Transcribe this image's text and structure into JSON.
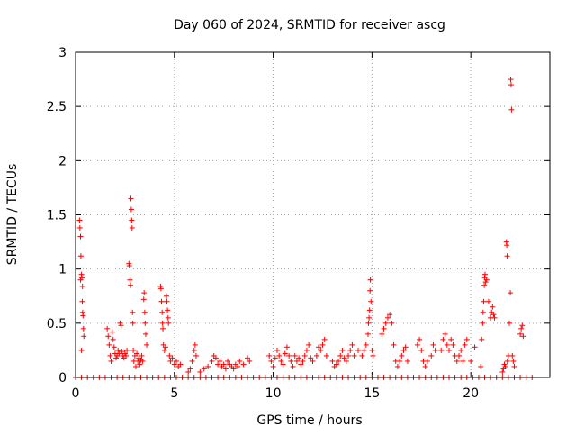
{
  "chart_data": {
    "type": "scatter",
    "title": "Day 060 of 2024, SRMTID for receiver ascg",
    "xlabel": "GPS time / hours",
    "ylabel": "SRMTID / TECUs",
    "xlim": [
      0,
      24
    ],
    "ylim": [
      0,
      3
    ],
    "x_ticks": [
      0,
      5,
      10,
      15,
      20
    ],
    "x_tick_labels": [
      "0",
      "5",
      "10",
      "15",
      "20"
    ],
    "y_ticks": [
      0,
      0.5,
      1,
      1.5,
      2,
      2.5,
      3
    ],
    "y_tick_labels": [
      "0",
      "0.5",
      "1",
      "1.5",
      "2",
      "2.5",
      "3"
    ],
    "grid": true,
    "marker": "+",
    "series": [
      {
        "name": "SRMTID",
        "color": "#ff0000",
        "points": [
          [
            0.2,
            1.45
          ],
          [
            0.22,
            1.38
          ],
          [
            0.25,
            1.3
          ],
          [
            0.27,
            1.12
          ],
          [
            0.3,
            0.95
          ],
          [
            0.32,
            0.92
          ],
          [
            0.34,
            0.7
          ],
          [
            0.36,
            0.6
          ],
          [
            0.38,
            0.57
          ],
          [
            0.4,
            0.45
          ],
          [
            0.42,
            0.38
          ],
          [
            0.3,
            0.25
          ],
          [
            0.25,
            0.9
          ],
          [
            0.35,
            0.84
          ],
          [
            1.6,
            0.45
          ],
          [
            1.65,
            0.38
          ],
          [
            1.7,
            0.3
          ],
          [
            1.75,
            0.2
          ],
          [
            1.8,
            0.15
          ],
          [
            1.85,
            0.42
          ],
          [
            1.9,
            0.35
          ],
          [
            1.95,
            0.28
          ],
          [
            2.0,
            0.22
          ],
          [
            2.05,
            0.18
          ],
          [
            2.1,
            0.2
          ],
          [
            2.15,
            0.25
          ],
          [
            2.2,
            0.22
          ],
          [
            2.25,
            0.5
          ],
          [
            2.3,
            0.48
          ],
          [
            2.35,
            0.24
          ],
          [
            2.4,
            0.2
          ],
          [
            2.45,
            0.18
          ],
          [
            2.5,
            0.22
          ],
          [
            2.55,
            0.2
          ],
          [
            2.6,
            0.25
          ],
          [
            2.7,
            1.05
          ],
          [
            2.72,
            1.03
          ],
          [
            2.75,
            0.9
          ],
          [
            2.78,
            0.85
          ],
          [
            2.8,
            1.65
          ],
          [
            2.82,
            1.55
          ],
          [
            2.84,
            1.45
          ],
          [
            2.86,
            1.38
          ],
          [
            2.88,
            0.6
          ],
          [
            2.9,
            0.5
          ],
          [
            2.92,
            0.25
          ],
          [
            2.95,
            0.15
          ],
          [
            3.0,
            0.2
          ],
          [
            3.05,
            0.1
          ],
          [
            3.1,
            0.22
          ],
          [
            3.15,
            0.15
          ],
          [
            3.2,
            0.18
          ],
          [
            3.25,
            0.12
          ],
          [
            3.3,
            0.16
          ],
          [
            3.35,
            0.2
          ],
          [
            3.4,
            0.15
          ],
          [
            3.45,
            0.72
          ],
          [
            3.47,
            0.78
          ],
          [
            3.5,
            0.6
          ],
          [
            3.52,
            0.5
          ],
          [
            3.55,
            0.4
          ],
          [
            3.6,
            0.3
          ],
          [
            4.3,
            0.84
          ],
          [
            4.32,
            0.82
          ],
          [
            4.35,
            0.7
          ],
          [
            4.38,
            0.6
          ],
          [
            4.4,
            0.5
          ],
          [
            4.42,
            0.45
          ],
          [
            4.45,
            0.3
          ],
          [
            4.5,
            0.25
          ],
          [
            4.55,
            0.28
          ],
          [
            4.6,
            0.75
          ],
          [
            4.62,
            0.7
          ],
          [
            4.65,
            0.62
          ],
          [
            4.68,
            0.55
          ],
          [
            4.7,
            0.5
          ],
          [
            4.75,
            0.2
          ],
          [
            4.8,
            0.15
          ],
          [
            4.9,
            0.18
          ],
          [
            5.0,
            0.12
          ],
          [
            5.1,
            0.15
          ],
          [
            5.2,
            0.1
          ],
          [
            5.3,
            0.12
          ],
          [
            5.7,
            0.05
          ],
          [
            5.8,
            0.08
          ],
          [
            5.9,
            0.15
          ],
          [
            6.0,
            0.25
          ],
          [
            6.05,
            0.3
          ],
          [
            6.1,
            0.2
          ],
          [
            6.3,
            0.05
          ],
          [
            6.5,
            0.08
          ],
          [
            6.7,
            0.1
          ],
          [
            6.9,
            0.15
          ],
          [
            7.0,
            0.2
          ],
          [
            7.1,
            0.18
          ],
          [
            7.2,
            0.12
          ],
          [
            7.3,
            0.15
          ],
          [
            7.4,
            0.1
          ],
          [
            7.5,
            0.12
          ],
          [
            7.6,
            0.08
          ],
          [
            7.7,
            0.15
          ],
          [
            7.8,
            0.12
          ],
          [
            7.9,
            0.1
          ],
          [
            8.0,
            0.08
          ],
          [
            8.1,
            0.12
          ],
          [
            8.2,
            0.1
          ],
          [
            8.3,
            0.15
          ],
          [
            8.5,
            0.12
          ],
          [
            8.7,
            0.18
          ],
          [
            8.8,
            0.15
          ],
          [
            9.8,
            0.2
          ],
          [
            9.9,
            0.15
          ],
          [
            10.0,
            0.1
          ],
          [
            10.1,
            0.18
          ],
          [
            10.2,
            0.25
          ],
          [
            10.3,
            0.2
          ],
          [
            10.4,
            0.15
          ],
          [
            10.5,
            0.12
          ],
          [
            10.6,
            0.22
          ],
          [
            10.7,
            0.28
          ],
          [
            10.8,
            0.2
          ],
          [
            10.9,
            0.15
          ],
          [
            11.0,
            0.1
          ],
          [
            11.1,
            0.2
          ],
          [
            11.2,
            0.15
          ],
          [
            11.3,
            0.18
          ],
          [
            11.4,
            0.12
          ],
          [
            11.5,
            0.15
          ],
          [
            11.6,
            0.2
          ],
          [
            11.7,
            0.25
          ],
          [
            11.8,
            0.3
          ],
          [
            11.9,
            0.18
          ],
          [
            12.0,
            0.15
          ],
          [
            12.2,
            0.2
          ],
          [
            12.3,
            0.28
          ],
          [
            12.4,
            0.25
          ],
          [
            12.5,
            0.3
          ],
          [
            12.6,
            0.35
          ],
          [
            12.7,
            0.2
          ],
          [
            13.0,
            0.15
          ],
          [
            13.1,
            0.1
          ],
          [
            13.2,
            0.12
          ],
          [
            13.3,
            0.15
          ],
          [
            13.4,
            0.2
          ],
          [
            13.5,
            0.25
          ],
          [
            13.6,
            0.18
          ],
          [
            13.7,
            0.15
          ],
          [
            13.8,
            0.2
          ],
          [
            13.9,
            0.25
          ],
          [
            14.0,
            0.3
          ],
          [
            14.1,
            0.2
          ],
          [
            14.3,
            0.25
          ],
          [
            14.5,
            0.2
          ],
          [
            14.6,
            0.25
          ],
          [
            14.7,
            0.3
          ],
          [
            14.8,
            0.4
          ],
          [
            14.82,
            0.5
          ],
          [
            14.85,
            0.55
          ],
          [
            14.88,
            0.62
          ],
          [
            14.9,
            0.8
          ],
          [
            14.92,
            0.9
          ],
          [
            14.95,
            0.7
          ],
          [
            15.0,
            0.25
          ],
          [
            15.05,
            0.2
          ],
          [
            15.5,
            0.4
          ],
          [
            15.6,
            0.45
          ],
          [
            15.7,
            0.5
          ],
          [
            15.8,
            0.55
          ],
          [
            15.9,
            0.58
          ],
          [
            16.0,
            0.5
          ],
          [
            16.1,
            0.3
          ],
          [
            16.2,
            0.15
          ],
          [
            16.3,
            0.1
          ],
          [
            16.4,
            0.15
          ],
          [
            16.5,
            0.2
          ],
          [
            16.6,
            0.25
          ],
          [
            16.7,
            0.28
          ],
          [
            16.8,
            0.15
          ],
          [
            17.3,
            0.3
          ],
          [
            17.4,
            0.35
          ],
          [
            17.5,
            0.25
          ],
          [
            17.6,
            0.15
          ],
          [
            17.7,
            0.1
          ],
          [
            17.8,
            0.15
          ],
          [
            18.0,
            0.2
          ],
          [
            18.1,
            0.3
          ],
          [
            18.2,
            0.25
          ],
          [
            18.5,
            0.25
          ],
          [
            18.6,
            0.35
          ],
          [
            18.7,
            0.4
          ],
          [
            18.8,
            0.3
          ],
          [
            18.9,
            0.25
          ],
          [
            19.0,
            0.35
          ],
          [
            19.1,
            0.3
          ],
          [
            19.2,
            0.2
          ],
          [
            19.3,
            0.15
          ],
          [
            19.4,
            0.2
          ],
          [
            19.5,
            0.25
          ],
          [
            19.6,
            0.15
          ],
          [
            19.7,
            0.3
          ],
          [
            19.8,
            0.35
          ],
          [
            20.0,
            0.15
          ],
          [
            20.2,
            0.28
          ],
          [
            20.5,
            0.1
          ],
          [
            20.55,
            0.35
          ],
          [
            20.6,
            0.5
          ],
          [
            20.62,
            0.6
          ],
          [
            20.65,
            0.7
          ],
          [
            20.68,
            0.85
          ],
          [
            20.7,
            0.92
          ],
          [
            20.72,
            0.95
          ],
          [
            20.75,
            0.88
          ],
          [
            20.8,
            0.9
          ],
          [
            20.9,
            0.7
          ],
          [
            21.0,
            0.55
          ],
          [
            21.05,
            0.6
          ],
          [
            21.1,
            0.65
          ],
          [
            21.15,
            0.58
          ],
          [
            21.2,
            0.55
          ],
          [
            21.6,
            0.05
          ],
          [
            21.65,
            0.08
          ],
          [
            21.7,
            0.12
          ],
          [
            21.75,
            0.1
          ],
          [
            21.8,
            1.25
          ],
          [
            21.82,
            1.22
          ],
          [
            21.84,
            1.12
          ],
          [
            21.85,
            0.15
          ],
          [
            21.9,
            0.2
          ],
          [
            21.95,
            0.5
          ],
          [
            22.0,
            0.78
          ],
          [
            22.02,
            2.75
          ],
          [
            22.04,
            2.7
          ],
          [
            22.06,
            2.47
          ],
          [
            22.1,
            0.2
          ],
          [
            22.15,
            0.15
          ],
          [
            22.2,
            0.1
          ],
          [
            22.5,
            0.4
          ],
          [
            22.55,
            0.45
          ],
          [
            22.6,
            0.48
          ],
          [
            22.65,
            0.38
          ]
        ],
        "baseline_x": [
          0,
          0.3,
          0.6,
          0.9,
          1.2,
          1.5,
          1.8,
          2.1,
          2.4,
          2.7,
          3.0,
          3.3,
          3.6,
          3.9,
          4.2,
          4.5,
          4.8,
          5.1,
          5.4,
          5.7,
          6.0,
          6.3,
          6.6,
          6.9,
          7.2,
          7.5,
          7.8,
          8.1,
          8.4,
          8.7,
          9.0,
          9.3,
          9.6,
          9.9,
          10.2,
          10.5,
          10.8,
          11.1,
          11.4,
          11.7,
          12.0,
          12.3,
          12.6,
          12.9,
          13.2,
          13.5,
          13.8,
          14.1,
          14.4,
          14.7,
          15.0,
          15.3,
          15.6,
          15.9,
          16.2,
          16.5,
          16.8,
          17.1,
          17.4,
          17.7,
          18.0,
          18.3,
          18.6,
          18.9,
          19.2,
          19.5,
          19.8,
          20.1,
          20.4,
          20.7,
          21.0,
          21.3,
          21.6,
          21.9,
          22.2,
          22.5,
          22.8,
          23.1
        ]
      }
    ]
  }
}
